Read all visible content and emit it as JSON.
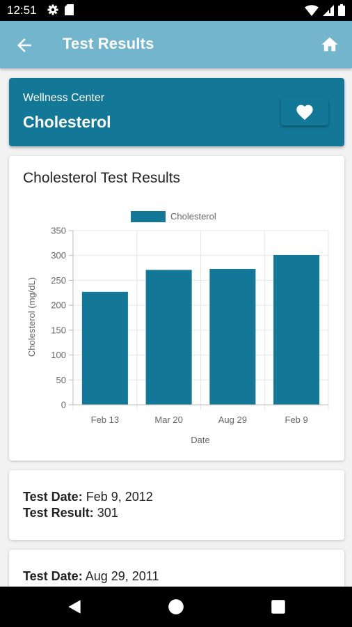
{
  "status_bar": {
    "time": "12:51",
    "left_icons": [
      "gear-icon",
      "sd-card-icon"
    ],
    "right_icons": [
      "wifi-icon",
      "cellular-signal-icon",
      "battery-icon"
    ]
  },
  "app_bar": {
    "title": "Test Results",
    "back_icon": "arrow-left-icon",
    "home_icon": "home-icon",
    "color": "#72b5cc"
  },
  "header_card": {
    "subtitle": "Wellness Center",
    "title": "Cholesterol",
    "favorite_icon": "heart-icon",
    "color": "#137898"
  },
  "chart_card": {
    "title": "Cholesterol Test Results"
  },
  "chart_data": {
    "type": "bar",
    "categories": [
      "Feb 13",
      "Mar 20",
      "Aug 29",
      "Feb 9"
    ],
    "series": [
      {
        "name": "Cholesterol",
        "values": [
          227,
          271,
          273,
          301
        ],
        "color": "#137898"
      }
    ],
    "xlabel": "Date",
    "ylabel": "Cholesterol (mg/dL)",
    "ylim": [
      0,
      350
    ],
    "yticks": [
      0,
      50,
      100,
      150,
      200,
      250,
      300,
      350
    ],
    "grid": true,
    "legend_position": "top-center"
  },
  "results": [
    {
      "date_label": "Test Date:",
      "date": "Feb 9, 2012",
      "result_label": "Test Result:",
      "result": "301"
    },
    {
      "date_label": "Test Date:",
      "date": "Aug 29, 2011"
    }
  ],
  "nav_bar": {
    "icons": [
      "back-triangle-icon",
      "home-circle-icon",
      "recents-square-icon"
    ]
  }
}
